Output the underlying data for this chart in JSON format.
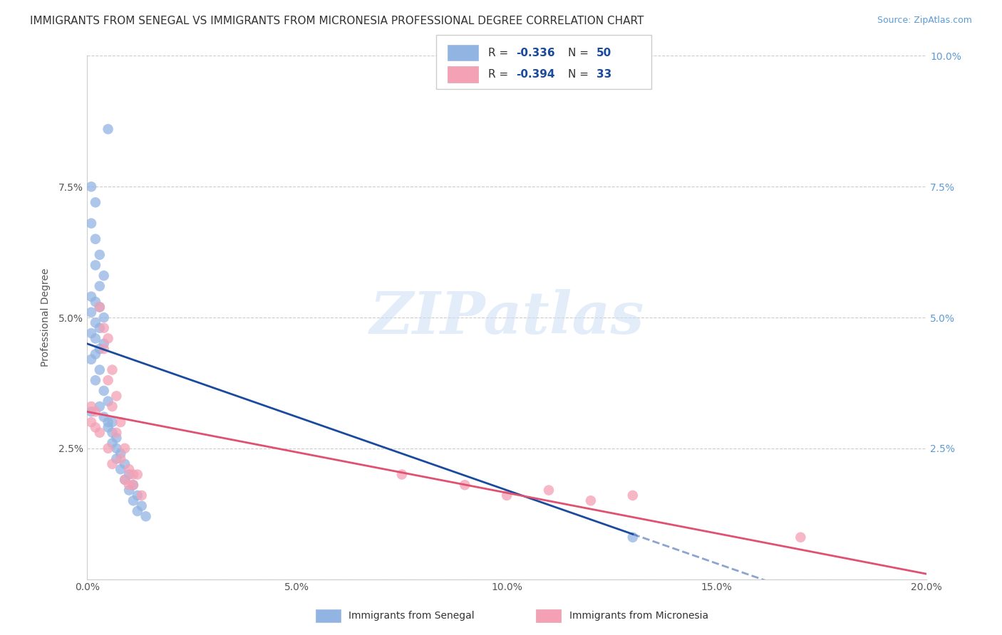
{
  "title": "IMMIGRANTS FROM SENEGAL VS IMMIGRANTS FROM MICRONESIA PROFESSIONAL DEGREE CORRELATION CHART",
  "source": "Source: ZipAtlas.com",
  "ylabel": "Professional Degree",
  "x_min": 0.0,
  "x_max": 0.2,
  "y_min": 0.0,
  "y_max": 0.1,
  "x_tick_vals": [
    0.0,
    0.05,
    0.1,
    0.15,
    0.2
  ],
  "x_tick_labels": [
    "0.0%",
    "5.0%",
    "10.0%",
    "15.0%",
    "20.0%"
  ],
  "y_tick_vals": [
    0.0,
    0.025,
    0.05,
    0.075,
    0.1
  ],
  "y_tick_labels_left": [
    "",
    "2.5%",
    "5.0%",
    "7.5%",
    ""
  ],
  "y_tick_labels_right": [
    "",
    "2.5%",
    "5.0%",
    "7.5%",
    "10.0%"
  ],
  "senegal_color": "#92b4e3",
  "micronesia_color": "#f4a0b5",
  "senegal_line_color": "#1a4a9e",
  "micronesia_line_color": "#e05070",
  "R_senegal": -0.336,
  "N_senegal": 50,
  "R_micronesia": -0.394,
  "N_micronesia": 33,
  "legend_label_senegal": "Immigrants from Senegal",
  "legend_label_micronesia": "Immigrants from Micronesia",
  "watermark": "ZIPatlas",
  "senegal_x": [
    0.005,
    0.001,
    0.002,
    0.001,
    0.002,
    0.003,
    0.002,
    0.004,
    0.003,
    0.001,
    0.002,
    0.003,
    0.001,
    0.004,
    0.002,
    0.003,
    0.001,
    0.002,
    0.004,
    0.003,
    0.002,
    0.001,
    0.003,
    0.002,
    0.004,
    0.005,
    0.003,
    0.004,
    0.005,
    0.006,
    0.005,
    0.006,
    0.007,
    0.006,
    0.007,
    0.008,
    0.007,
    0.009,
    0.008,
    0.01,
    0.009,
    0.011,
    0.01,
    0.012,
    0.011,
    0.013,
    0.012,
    0.014,
    0.13,
    0.001
  ],
  "senegal_y": [
    0.086,
    0.075,
    0.072,
    0.068,
    0.065,
    0.062,
    0.06,
    0.058,
    0.056,
    0.054,
    0.053,
    0.052,
    0.051,
    0.05,
    0.049,
    0.048,
    0.047,
    0.046,
    0.045,
    0.044,
    0.043,
    0.042,
    0.04,
    0.038,
    0.036,
    0.034,
    0.033,
    0.031,
    0.03,
    0.03,
    0.029,
    0.028,
    0.027,
    0.026,
    0.025,
    0.024,
    0.023,
    0.022,
    0.021,
    0.02,
    0.019,
    0.018,
    0.017,
    0.016,
    0.015,
    0.014,
    0.013,
    0.012,
    0.008,
    0.032
  ],
  "micronesia_x": [
    0.001,
    0.002,
    0.001,
    0.003,
    0.004,
    0.002,
    0.005,
    0.003,
    0.004,
    0.005,
    0.006,
    0.005,
    0.007,
    0.006,
    0.008,
    0.007,
    0.009,
    0.008,
    0.01,
    0.009,
    0.011,
    0.01,
    0.012,
    0.011,
    0.013,
    0.075,
    0.09,
    0.1,
    0.11,
    0.12,
    0.13,
    0.17,
    0.006
  ],
  "micronesia_y": [
    0.033,
    0.032,
    0.03,
    0.052,
    0.048,
    0.029,
    0.046,
    0.028,
    0.044,
    0.025,
    0.04,
    0.038,
    0.035,
    0.033,
    0.03,
    0.028,
    0.025,
    0.023,
    0.021,
    0.019,
    0.02,
    0.018,
    0.02,
    0.018,
    0.016,
    0.02,
    0.018,
    0.016,
    0.017,
    0.015,
    0.016,
    0.008,
    0.022
  ],
  "background_color": "#ffffff",
  "grid_color": "#cccccc",
  "title_fontsize": 11,
  "axis_label_fontsize": 10,
  "tick_fontsize": 10,
  "senegal_line_x0": 0.0,
  "senegal_line_x_solid_end": 0.13,
  "senegal_line_x_dash_end": 0.2,
  "senegal_line_y0": 0.045,
  "senegal_line_slope": -0.28,
  "micronesia_line_x0": 0.0,
  "micronesia_line_x_end": 0.2,
  "micronesia_line_y0": 0.032,
  "micronesia_line_slope": -0.155
}
